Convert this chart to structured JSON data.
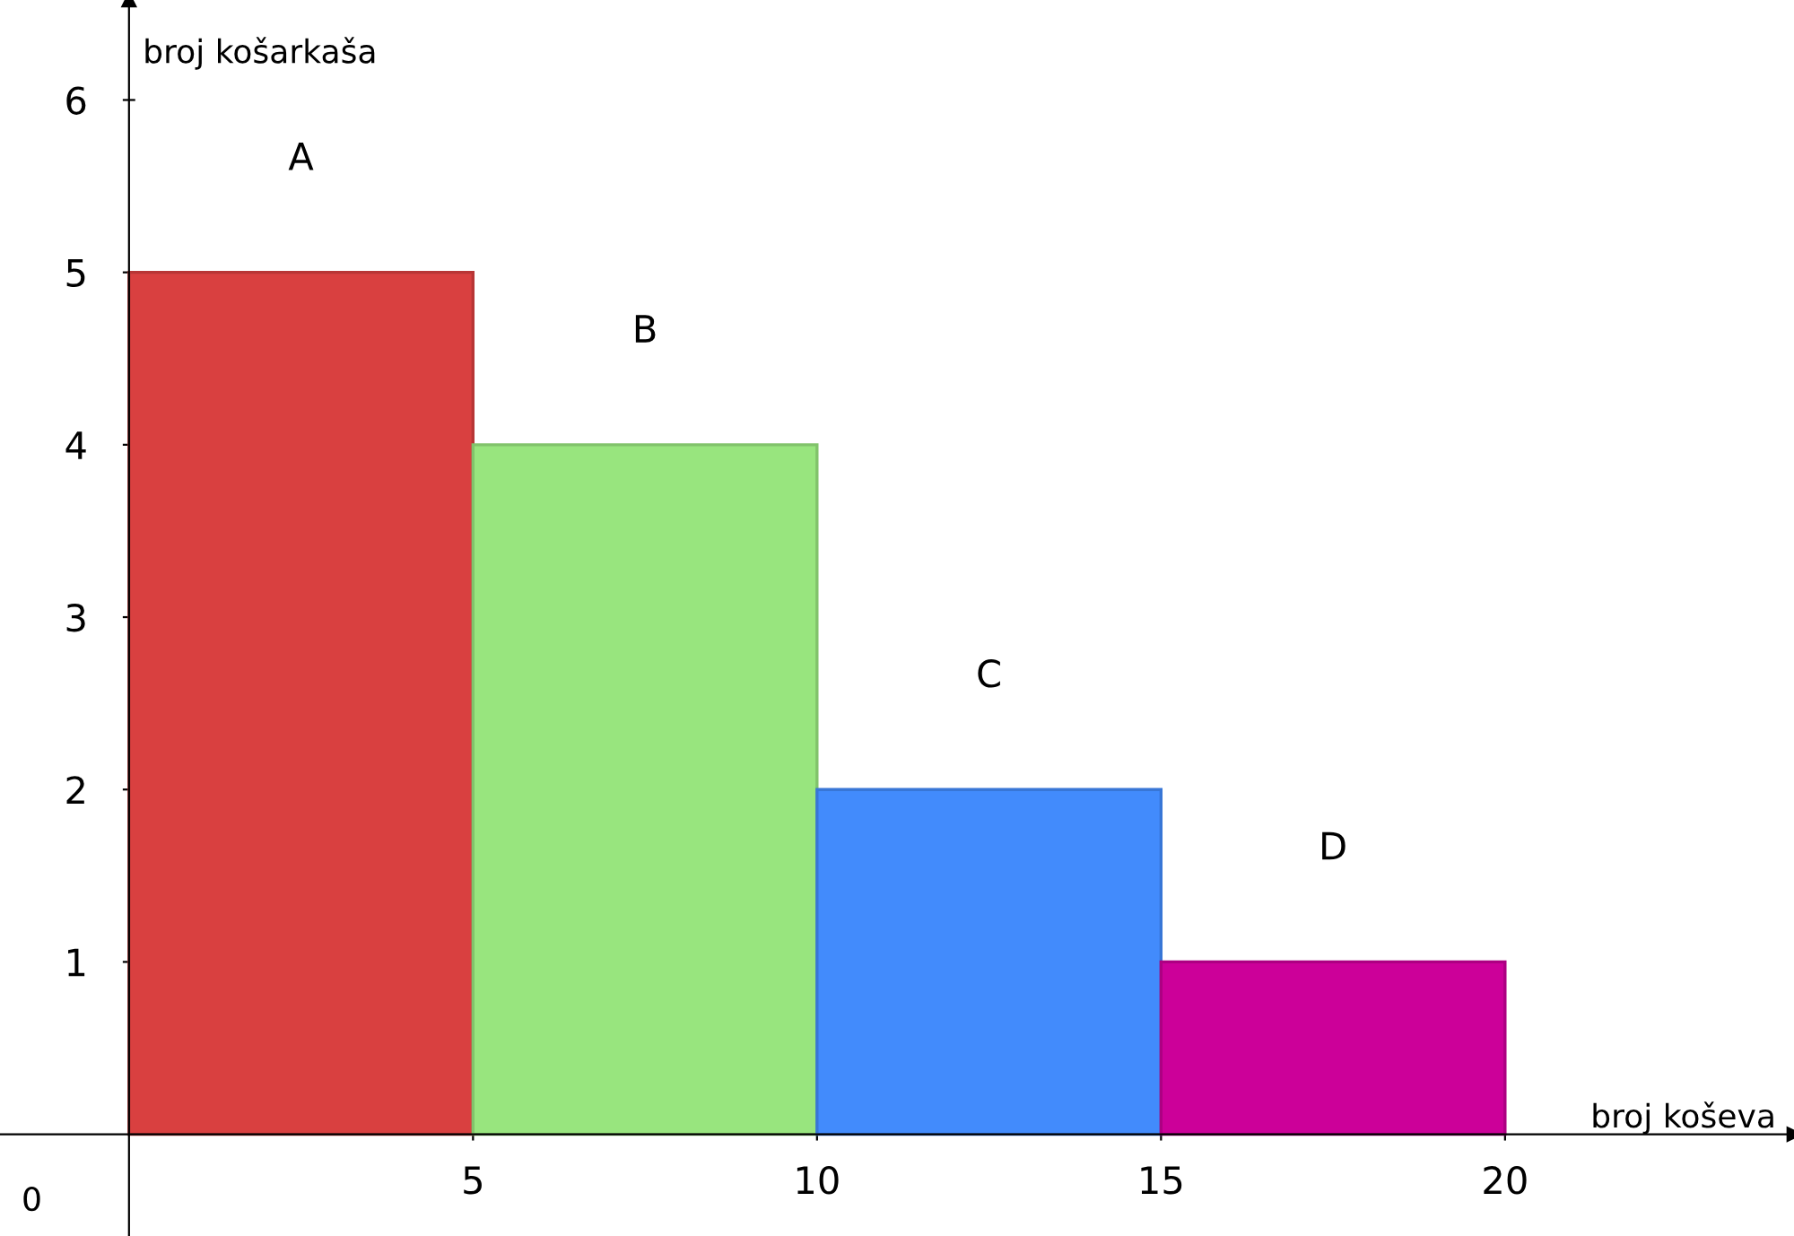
{
  "chart_data": {
    "type": "histogram",
    "xlabel": "broj koševa",
    "ylabel": "broj košarkaša",
    "bins": [
      0,
      5,
      10,
      15,
      20
    ],
    "values": [
      5,
      4,
      2,
      1
    ],
    "colors": [
      "#d94040",
      "#98e57e",
      "#428bfc",
      "#cc0099"
    ],
    "xlim": [
      -1.875,
      24.2
    ],
    "ylim": [
      -0.59,
      6.58
    ],
    "xticks": [
      5,
      10,
      15,
      20
    ],
    "yticks": [
      1,
      2,
      3,
      4,
      5,
      6
    ],
    "annotations": [
      "A",
      "B",
      "C",
      "D",
      "0"
    ],
    "grid": false,
    "legend": false
  }
}
